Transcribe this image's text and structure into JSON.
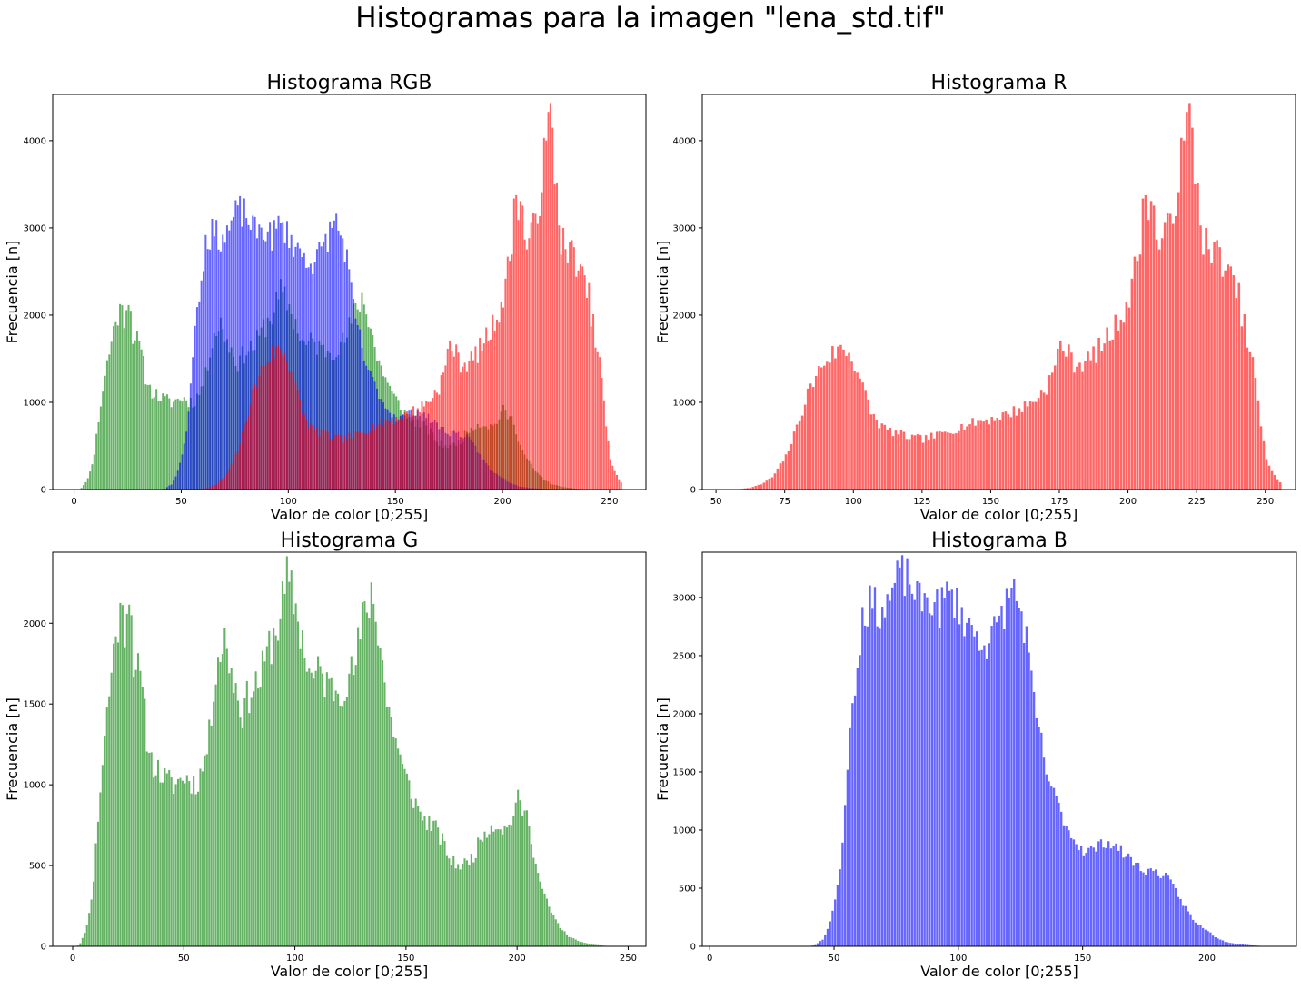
{
  "figure": {
    "suptitle": "Histogramas para la imagen \"lena_std.tif\""
  },
  "colors": {
    "red": "#ff0000",
    "green": "#008000",
    "blue": "#0000ff",
    "alpha": 0.6
  },
  "chart_data": [
    {
      "id": "rgb",
      "type": "bar",
      "title": "Histograma RGB",
      "xlabel": "Valor de color [0;255]",
      "ylabel": "Frecuencia [n]",
      "xlim": [
        -10,
        267
      ],
      "ylim": [
        0,
        4530
      ],
      "xticks": [
        0,
        50,
        100,
        150,
        200,
        250
      ],
      "yticks": [
        0,
        1000,
        2000,
        3000,
        4000
      ],
      "series": [
        {
          "ref": "green",
          "color": "green"
        },
        {
          "ref": "blue",
          "color": "blue"
        },
        {
          "ref": "red",
          "color": "red"
        }
      ]
    },
    {
      "id": "r",
      "type": "bar",
      "title": "Histograma R",
      "xlabel": "Valor de color [0;255]",
      "ylabel": "Frecuencia [n]",
      "xlim": [
        45,
        261
      ],
      "ylim": [
        0,
        4530
      ],
      "xticks": [
        50,
        75,
        100,
        125,
        150,
        175,
        200,
        225,
        250
      ],
      "yticks": [
        0,
        1000,
        2000,
        3000,
        4000
      ],
      "series": [
        {
          "ref": "red",
          "color": "red"
        }
      ]
    },
    {
      "id": "g",
      "type": "bar",
      "title": "Histograma G",
      "xlabel": "Valor de color [0;255]",
      "ylabel": "Frecuencia [n]",
      "xlim": [
        -9,
        258
      ],
      "ylim": [
        0,
        2440
      ],
      "xticks": [
        0,
        50,
        100,
        150,
        200,
        250
      ],
      "yticks": [
        0,
        500,
        1000,
        1500,
        2000
      ],
      "series": [
        {
          "ref": "green",
          "color": "green"
        }
      ]
    },
    {
      "id": "b",
      "type": "bar",
      "title": "Histograma B",
      "xlabel": "Valor de color [0;255]",
      "ylabel": "Frecuencia [n]",
      "xlim": [
        -3,
        236
      ],
      "ylim": [
        0,
        3390
      ],
      "xticks": [
        0,
        50,
        100,
        150,
        200
      ],
      "yticks": [
        0,
        500,
        1000,
        1500,
        2000,
        2500,
        3000
      ],
      "series": [
        {
          "ref": "blue",
          "color": "blue"
        }
      ]
    }
  ],
  "histograms": {
    "red": {
      "points": [
        [
          55,
          0
        ],
        [
          58,
          5
        ],
        [
          62,
          20
        ],
        [
          66,
          60
        ],
        [
          70,
          140
        ],
        [
          72,
          230
        ],
        [
          75,
          380
        ],
        [
          78,
          620
        ],
        [
          80,
          820
        ],
        [
          83,
          1100
        ],
        [
          86,
          1300
        ],
        [
          88,
          1420
        ],
        [
          90,
          1500
        ],
        [
          93,
          1580
        ],
        [
          96,
          1620
        ],
        [
          98,
          1560
        ],
        [
          100,
          1450
        ],
        [
          102,
          1280
        ],
        [
          104,
          1080
        ],
        [
          106,
          900
        ],
        [
          108,
          780
        ],
        [
          112,
          680
        ],
        [
          116,
          640
        ],
        [
          120,
          600
        ],
        [
          125,
          580
        ],
        [
          130,
          620
        ],
        [
          135,
          680
        ],
        [
          140,
          730
        ],
        [
          145,
          780
        ],
        [
          150,
          810
        ],
        [
          155,
          860
        ],
        [
          160,
          920
        ],
        [
          165,
          1010
        ],
        [
          170,
          1180
        ],
        [
          173,
          1400
        ],
        [
          175,
          1700
        ],
        [
          177,
          1600
        ],
        [
          180,
          1450
        ],
        [
          183,
          1450
        ],
        [
          186,
          1500
        ],
        [
          190,
          1650
        ],
        [
          195,
          1870
        ],
        [
          200,
          2200
        ],
        [
          203,
          2650
        ],
        [
          206,
          3400
        ],
        [
          208,
          3300
        ],
        [
          211,
          2800
        ],
        [
          214,
          2950
        ],
        [
          217,
          3400
        ],
        [
          220,
          3950
        ],
        [
          222,
          4300
        ],
        [
          224,
          3700
        ],
        [
          227,
          2900
        ],
        [
          230,
          2650
        ],
        [
          233,
          2750
        ],
        [
          236,
          2450
        ],
        [
          238,
          2350
        ],
        [
          240,
          2200
        ],
        [
          243,
          1700
        ],
        [
          246,
          1300
        ],
        [
          248,
          700
        ],
        [
          250,
          350
        ],
        [
          252,
          220
        ],
        [
          254,
          120
        ],
        [
          255,
          80
        ]
      ],
      "noise": 0.08,
      "seed": 7
    },
    "green": {
      "points": [
        [
          0,
          0
        ],
        [
          2,
          5
        ],
        [
          3,
          20
        ],
        [
          5,
          80
        ],
        [
          7,
          200
        ],
        [
          9,
          420
        ],
        [
          11,
          800
        ],
        [
          13,
          1150
        ],
        [
          15,
          1450
        ],
        [
          17,
          1700
        ],
        [
          19,
          1950
        ],
        [
          21,
          2050
        ],
        [
          23,
          2000
        ],
        [
          25,
          2250
        ],
        [
          27,
          1800
        ],
        [
          29,
          1700
        ],
        [
          31,
          1550
        ],
        [
          33,
          1300
        ],
        [
          35,
          1150
        ],
        [
          40,
          1050
        ],
        [
          45,
          1000
        ],
        [
          50,
          1050
        ],
        [
          55,
          1000
        ],
        [
          58,
          1100
        ],
        [
          61,
          1300
        ],
        [
          64,
          1750
        ],
        [
          68,
          1900
        ],
        [
          72,
          1650
        ],
        [
          76,
          1450
        ],
        [
          80,
          1600
        ],
        [
          84,
          1650
        ],
        [
          88,
          1850
        ],
        [
          92,
          2000
        ],
        [
          96,
          2250
        ],
        [
          99,
          2150
        ],
        [
          103,
          1900
        ],
        [
          107,
          1650
        ],
        [
          111,
          1700
        ],
        [
          115,
          1600
        ],
        [
          120,
          1600
        ],
        [
          126,
          1700
        ],
        [
          130,
          2000
        ],
        [
          134,
          2200
        ],
        [
          138,
          1900
        ],
        [
          141,
          1500
        ],
        [
          144,
          1350
        ],
        [
          148,
          1100
        ],
        [
          152,
          950
        ],
        [
          155,
          850
        ],
        [
          158,
          780
        ],
        [
          162,
          750
        ],
        [
          166,
          650
        ],
        [
          170,
          520
        ],
        [
          175,
          500
        ],
        [
          180,
          560
        ],
        [
          185,
          720
        ],
        [
          190,
          760
        ],
        [
          195,
          720
        ],
        [
          200,
          900
        ],
        [
          203,
          820
        ],
        [
          205,
          780
        ],
        [
          208,
          500
        ],
        [
          211,
          350
        ],
        [
          214,
          240
        ],
        [
          217,
          160
        ],
        [
          220,
          100
        ],
        [
          223,
          60
        ],
        [
          226,
          40
        ],
        [
          230,
          20
        ],
        [
          235,
          8
        ],
        [
          240,
          3
        ],
        [
          245,
          1
        ],
        [
          250,
          0
        ]
      ],
      "noise": 0.08,
      "seed": 11
    },
    "blue": {
      "points": [
        [
          0,
          0
        ],
        [
          8,
          3
        ],
        [
          12,
          0
        ],
        [
          38,
          0
        ],
        [
          40,
          3
        ],
        [
          42,
          10
        ],
        [
          45,
          60
        ],
        [
          47,
          150
        ],
        [
          49,
          300
        ],
        [
          51,
          500
        ],
        [
          53,
          900
        ],
        [
          55,
          1600
        ],
        [
          57,
          2100
        ],
        [
          59,
          2450
        ],
        [
          61,
          2850
        ],
        [
          64,
          2950
        ],
        [
          67,
          2900
        ],
        [
          70,
          2900
        ],
        [
          73,
          3050
        ],
        [
          76,
          3200
        ],
        [
          80,
          3150
        ],
        [
          84,
          2950
        ],
        [
          88,
          3000
        ],
        [
          92,
          2900
        ],
        [
          96,
          3050
        ],
        [
          100,
          2900
        ],
        [
          104,
          2750
        ],
        [
          108,
          2650
        ],
        [
          112,
          2600
        ],
        [
          116,
          2800
        ],
        [
          119,
          2950
        ],
        [
          121,
          3100
        ],
        [
          123,
          3000
        ],
        [
          125,
          2850
        ],
        [
          127,
          2650
        ],
        [
          129,
          2250
        ],
        [
          131,
          1950
        ],
        [
          133,
          1750
        ],
        [
          135,
          1500
        ],
        [
          138,
          1300
        ],
        [
          141,
          1150
        ],
        [
          145,
          950
        ],
        [
          150,
          820
        ],
        [
          155,
          840
        ],
        [
          158,
          900
        ],
        [
          162,
          880
        ],
        [
          166,
          800
        ],
        [
          170,
          730
        ],
        [
          174,
          650
        ],
        [
          178,
          650
        ],
        [
          183,
          600
        ],
        [
          186,
          520
        ],
        [
          189,
          400
        ],
        [
          192,
          300
        ],
        [
          195,
          200
        ],
        [
          199,
          150
        ],
        [
          203,
          80
        ],
        [
          207,
          40
        ],
        [
          212,
          20
        ],
        [
          218,
          8
        ],
        [
          225,
          0
        ]
      ],
      "noise": 0.06,
      "seed": 23
    }
  }
}
